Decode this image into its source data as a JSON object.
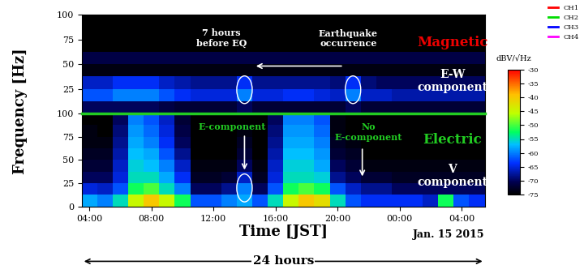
{
  "chart_data": {
    "type": "heatmap",
    "xlabel": "Time [JST]",
    "ylabel": "Frequency [Hz]",
    "date": "Jan. 15 2015",
    "span_label": "24 hours",
    "xlim": [
      3.5,
      29.5
    ],
    "xticks": [
      {
        "value": 4,
        "label": "04:00"
      },
      {
        "value": 8,
        "label": "08:00"
      },
      {
        "value": 12,
        "label": "12:00"
      },
      {
        "value": 16,
        "label": "16:00"
      },
      {
        "value": 20,
        "label": "20:00"
      },
      {
        "value": 24,
        "label": "00:00"
      },
      {
        "value": 28,
        "label": "04:00"
      }
    ],
    "events": {
      "precursor": 14.0,
      "earthquake": 21.0
    },
    "time_edges": [
      3.5,
      4.5,
      5.5,
      6.5,
      7.5,
      8.5,
      9.5,
      10.5,
      11.5,
      12.5,
      13.5,
      14.5,
      15.5,
      16.5,
      17.5,
      18.5,
      19.5,
      20.5,
      21.5,
      22.5,
      23.5,
      24.5,
      25.5,
      26.5,
      27.5,
      28.5,
      29.5
    ],
    "freq_edges": [
      0,
      12.5,
      25,
      37.5,
      50,
      62.5,
      75,
      87.5,
      100
    ],
    "colorbar": {
      "label": "dBV/√Hz",
      "range": [
        -75,
        -30
      ],
      "ticks": [
        -30,
        -35,
        -40,
        -45,
        -50,
        -55,
        -60,
        -65,
        -70,
        -75
      ]
    },
    "series": [
      {
        "name": "CH1",
        "color": "#ff0000"
      },
      {
        "name": "CH2",
        "color": "#00dd00"
      },
      {
        "name": "CH3",
        "color": "#0000ff"
      },
      {
        "name": "CH4",
        "color": "#ff00ff"
      }
    ],
    "legend": "upper right",
    "panels": [
      {
        "name": "Magnetic",
        "component": "E-W\ncomponent",
        "color": "#ee0000",
        "notes": [
          "7 hours\nbefore EQ",
          "Earthquake\noccurrence"
        ],
        "ylim": [
          0,
          100
        ],
        "yticks": [
          25,
          50,
          75,
          100
        ],
        "cells": [
          [
            -70,
            -70,
            -70,
            -70,
            -70,
            -71,
            -72,
            -72,
            -72,
            -72,
            -70,
            -72,
            -72,
            -72,
            -72,
            -72,
            -72,
            -70,
            -72,
            -72,
            -72,
            -72,
            -72,
            -72,
            -72,
            -72
          ],
          [
            -62,
            -62,
            -60,
            -60,
            -60,
            -62,
            -64,
            -65,
            -65,
            -65,
            -60,
            -65,
            -65,
            -64,
            -64,
            -65,
            -66,
            -60,
            -66,
            -66,
            -67,
            -67,
            -67,
            -67,
            -67,
            -67
          ],
          [
            -66,
            -66,
            -64,
            -64,
            -64,
            -66,
            -67,
            -68,
            -68,
            -68,
            -64,
            -68,
            -68,
            -68,
            -68,
            -68,
            -69,
            -64,
            -69,
            -70,
            -70,
            -70,
            -70,
            -70,
            -70,
            -70
          ],
          [
            -74,
            -74,
            -74,
            -74,
            -74,
            -74,
            -74,
            -74,
            -74,
            -74,
            -74,
            -74,
            -74,
            -74,
            -74,
            -74,
            -74,
            -74,
            -74,
            -74,
            -74,
            -74,
            -74,
            -74,
            -74,
            -74
          ],
          [
            -71,
            -71,
            -71,
            -71,
            -71,
            -71,
            -71,
            -71,
            -71,
            -71,
            -71,
            -71,
            -71,
            -71,
            -71,
            -71,
            -71,
            -71,
            -71,
            -71,
            -71,
            -71,
            -71,
            -71,
            -71,
            -71
          ],
          [
            -75,
            -75,
            -75,
            -75,
            -75,
            -75,
            -75,
            -75,
            -75,
            -75,
            -75,
            -75,
            -75,
            -75,
            -75,
            -75,
            -75,
            -75,
            -75,
            -75,
            -75,
            -75,
            -75,
            -75,
            -75,
            -75
          ],
          [
            -75,
            -75,
            -75,
            -75,
            -75,
            -75,
            -75,
            -75,
            -75,
            -75,
            -75,
            -75,
            -75,
            -75,
            -75,
            -75,
            -75,
            -75,
            -75,
            -75,
            -75,
            -75,
            -75,
            -75,
            -75,
            -75
          ],
          [
            -75,
            -75,
            -75,
            -75,
            -75,
            -75,
            -75,
            -75,
            -75,
            -75,
            -75,
            -75,
            -75,
            -75,
            -75,
            -75,
            -75,
            -75,
            -75,
            -75,
            -75,
            -75,
            -75,
            -75,
            -75,
            -75
          ]
        ]
      },
      {
        "name": "Electric",
        "component": "V\ncomponent",
        "color": "#22cc22",
        "notes": [
          "E-component",
          "No\nE-component"
        ],
        "ylim": [
          0,
          100
        ],
        "yticks": [
          0,
          25,
          50,
          75,
          100
        ],
        "cells": [
          [
            -58,
            -60,
            -55,
            -45,
            -40,
            -45,
            -52,
            -62,
            -62,
            -60,
            -58,
            -62,
            -55,
            -45,
            -40,
            -42,
            -55,
            -62,
            -64,
            -64,
            -64,
            -64,
            -66,
            -52,
            -62,
            -64
          ],
          [
            -65,
            -66,
            -62,
            -52,
            -50,
            -55,
            -60,
            -70,
            -70,
            -68,
            -60,
            -70,
            -62,
            -52,
            -50,
            -52,
            -62,
            -66,
            -68,
            -68,
            -70,
            -70,
            -70,
            -70,
            -70,
            -70
          ],
          [
            -70,
            -70,
            -65,
            -55,
            -55,
            -58,
            -64,
            -73,
            -73,
            -72,
            -66,
            -73,
            -65,
            -55,
            -55,
            -56,
            -68,
            -70,
            -72,
            -72,
            -73,
            -73,
            -73,
            -73,
            -73,
            -73
          ],
          [
            -72,
            -72,
            -66,
            -56,
            -57,
            -60,
            -66,
            -74,
            -74,
            -74,
            -70,
            -74,
            -66,
            -56,
            -56,
            -58,
            -70,
            -72,
            -74,
            -74,
            -74,
            -74,
            -74,
            -74,
            -74,
            -74
          ],
          [
            -73,
            -73,
            -67,
            -57,
            -58,
            -62,
            -68,
            -75,
            -75,
            -75,
            -72,
            -75,
            -67,
            -57,
            -57,
            -59,
            -72,
            -73,
            -75,
            -75,
            -75,
            -75,
            -75,
            -75,
            -75,
            -75
          ],
          [
            -74,
            -74,
            -68,
            -58,
            -60,
            -64,
            -70,
            -75,
            -75,
            -75,
            -73,
            -75,
            -68,
            -58,
            -58,
            -60,
            -73,
            -74,
            -75,
            -75,
            -75,
            -75,
            -75,
            -75,
            -75,
            -75
          ],
          [
            -74,
            -75,
            -69,
            -59,
            -61,
            -65,
            -71,
            -75,
            -75,
            -75,
            -74,
            -75,
            -69,
            -59,
            -59,
            -61,
            -74,
            -75,
            -75,
            -75,
            -75,
            -75,
            -75,
            -75,
            -75,
            -75
          ],
          [
            -75,
            -75,
            -70,
            -60,
            -62,
            -66,
            -72,
            -75,
            -75,
            -75,
            -75,
            -75,
            -70,
            -60,
            -60,
            -62,
            -74,
            -75,
            -75,
            -75,
            -75,
            -75,
            -75,
            -75,
            -75,
            -75
          ]
        ]
      }
    ]
  }
}
